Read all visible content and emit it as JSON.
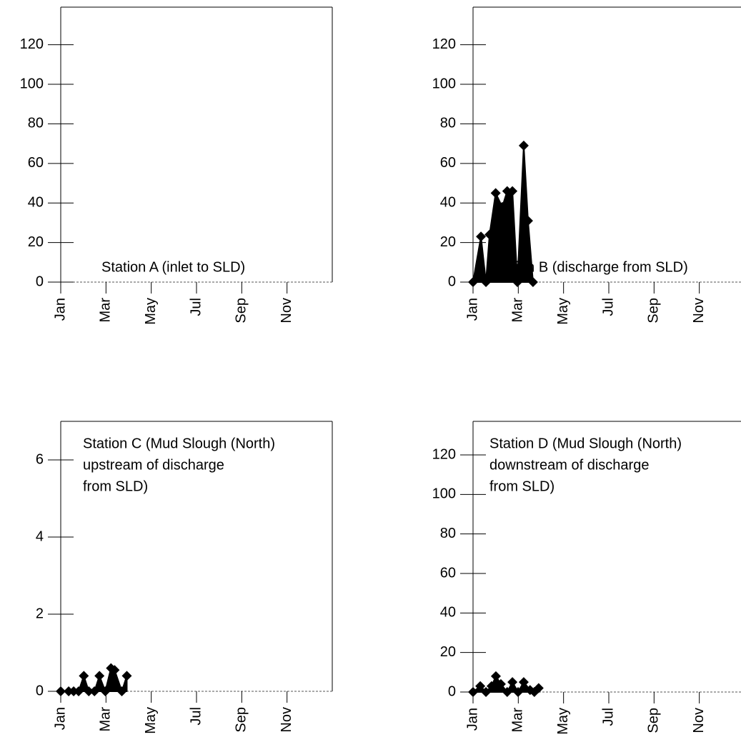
{
  "chart_data": [
    {
      "type": "area",
      "title": [
        "Station A (inlet to SLD)"
      ],
      "x": [],
      "values": [],
      "color": "#000000",
      "xlim": [
        0,
        12
      ],
      "xticks": [
        {
          "value": 0,
          "label": "Jan"
        },
        {
          "value": 2,
          "label": "Mar"
        },
        {
          "value": 4,
          "label": "May"
        },
        {
          "value": 6,
          "label": "Jul"
        },
        {
          "value": 8,
          "label": "Sep"
        },
        {
          "value": 10,
          "label": "Nov"
        }
      ],
      "ylim": [
        0,
        139
      ],
      "yticks": [
        0,
        20,
        40,
        60,
        80,
        100,
        120
      ]
    },
    {
      "type": "area",
      "title": [
        "Station B (discharge from SLD)"
      ],
      "x": [
        0,
        0.35,
        0.57,
        0.73,
        1.0,
        1.29,
        1.51,
        1.74,
        1.96,
        2.24,
        2.43,
        2.65
      ],
      "values": [
        0,
        23,
        0,
        24,
        45,
        38,
        46,
        46,
        0,
        69,
        31,
        0
      ],
      "color": "#000000",
      "xlim": [
        0,
        12
      ],
      "xticks": [
        {
          "value": 0,
          "label": "Jan"
        },
        {
          "value": 2,
          "label": "Mar"
        },
        {
          "value": 4,
          "label": "May"
        },
        {
          "value": 6,
          "label": "Jul"
        },
        {
          "value": 8,
          "label": "Sep"
        },
        {
          "value": 10,
          "label": "Nov"
        }
      ],
      "ylim": [
        0,
        139
      ],
      "yticks": [
        0,
        20,
        40,
        60,
        80,
        100,
        120
      ]
    },
    {
      "type": "area",
      "title": [
        "Station C (Mud Slough (North)",
        "upstream of discharge",
        "from SLD)"
      ],
      "x": [
        0,
        0.35,
        0.57,
        0.79,
        1.02,
        1.24,
        1.49,
        1.71,
        1.97,
        2.22,
        2.38,
        2.7,
        2.92
      ],
      "values": [
        0,
        0,
        0,
        0,
        0.4,
        0,
        0,
        0.4,
        0,
        0.6,
        0.55,
        0,
        0.4
      ],
      "color": "#000000",
      "xlim": [
        0,
        12
      ],
      "xticks": [
        {
          "value": 0,
          "label": "Jan"
        },
        {
          "value": 2,
          "label": "Mar"
        },
        {
          "value": 4,
          "label": "May"
        },
        {
          "value": 6,
          "label": "Jul"
        },
        {
          "value": 8,
          "label": "Sep"
        },
        {
          "value": 10,
          "label": "Nov"
        }
      ],
      "ylim": [
        0,
        7
      ],
      "yticks": [
        0,
        2,
        4,
        6
      ]
    },
    {
      "type": "area",
      "title": [
        "Station D (Mud Slough (North)",
        "downstream of discharge",
        "from SLD)"
      ],
      "x": [
        0,
        0.32,
        0.57,
        0.82,
        1.01,
        1.23,
        1.51,
        1.74,
        1.99,
        2.24,
        2.52,
        2.71,
        2.9
      ],
      "values": [
        0,
        3,
        0,
        3,
        8,
        4,
        0,
        5,
        0,
        5,
        1,
        0,
        2
      ],
      "color": "#000000",
      "xlim": [
        0,
        12
      ],
      "xticks": [
        {
          "value": 0,
          "label": "Jan"
        },
        {
          "value": 2,
          "label": "Mar"
        },
        {
          "value": 4,
          "label": "May"
        },
        {
          "value": 6,
          "label": "Jul"
        },
        {
          "value": 8,
          "label": "Sep"
        },
        {
          "value": 10,
          "label": "Nov"
        }
      ],
      "ylim": [
        0,
        137
      ],
      "yticks": [
        0,
        20,
        40,
        60,
        80,
        100,
        120
      ]
    }
  ]
}
